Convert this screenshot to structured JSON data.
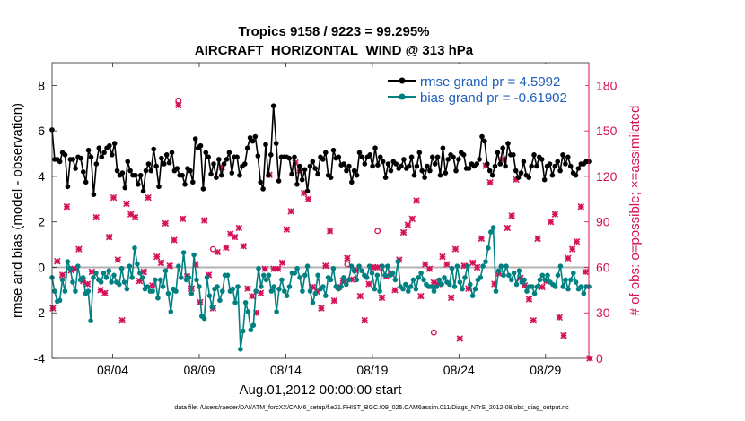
{
  "chart_data": {
    "type": "line",
    "title_line1": "Tropics 9158 / 9223 = 99.295%",
    "title_line2": "AIRCRAFT_HORIZONTAL_WIND @ 313 hPa",
    "ylabel_left": "rmse and bias (model - observation)",
    "ylabel_right": "# of obs: o=possible; ×=assimilated",
    "xlabel": "Aug.01,2012 00:00:00 start",
    "footnote": "data file: /Users/raeder/DAI/ATM_forcXX/CAM6_setup/f.e21.FHIST_BGC.f09_025.CAM6assim.011/Diags_NTrS_2012-08/obs_diag_output.nc",
    "ylim_left": [
      -4,
      9
    ],
    "ylim_right": [
      0,
      195
    ],
    "xlim": [
      0,
      31
    ],
    "yticks_left": [
      -4,
      -2,
      0,
      2,
      4,
      6,
      8
    ],
    "yticks_right": [
      0,
      30,
      60,
      90,
      120,
      150,
      180
    ],
    "xticks": [
      {
        "value": 3.5,
        "label": "08/04"
      },
      {
        "value": 8.5,
        "label": "08/09"
      },
      {
        "value": 13.5,
        "label": "08/14"
      },
      {
        "value": 18.5,
        "label": "08/19"
      },
      {
        "value": 23.5,
        "label": "08/24"
      },
      {
        "value": 28.5,
        "label": "08/29"
      }
    ],
    "zero_line": 0,
    "colors": {
      "rmse": "#000000",
      "bias": "#008080",
      "obs": "#d41159",
      "right_axis": "#d41159",
      "legend_text": "#1f5fbf",
      "zero_line": "#b3b3b3"
    },
    "series": [
      {
        "name": "rmse grand pr = 4.5992",
        "key": "rmse",
        "values": [
          6.05,
          4.75,
          4.75,
          4.65,
          5.05,
          4.95,
          3.55,
          4.75,
          4.75,
          4.35,
          4.85,
          4.8,
          4.2,
          3.75,
          5.15,
          4.85,
          3.2,
          4.55,
          5.25,
          4.85,
          5.05,
          5.25,
          5.35,
          4.95,
          5.45,
          4.25,
          4.05,
          4.15,
          3.5,
          4.65,
          4.25,
          4.05,
          4.05,
          3.65,
          4.05,
          3.35,
          4.25,
          4.55,
          4.25,
          5.2,
          4.45,
          3.55,
          4.8,
          4.55,
          4.95,
          4.6,
          5.05,
          4.25,
          4.35,
          4.05,
          4.05,
          3.65,
          4.35,
          4.25,
          3.75,
          5.65,
          5.25,
          5.35,
          3.45,
          5.05,
          4.85,
          4.1,
          4.55,
          3.95,
          4.75,
          4.05,
          4.55,
          4.75,
          5.05,
          4.15,
          4.85,
          4.85,
          4.05,
          4.45,
          4.55,
          5.25,
          5.7,
          5.55,
          5.75,
          4.9,
          3.75,
          3.45,
          5.4,
          4.05,
          4.95,
          7.1,
          5.45,
          3.8,
          4.85,
          4.85,
          4.85,
          4.8,
          4.1,
          4.85,
          3.65,
          4.45,
          3.85,
          4.3,
          3.35,
          4.45,
          4.65,
          4.35,
          4.1,
          4.85,
          4.75,
          5.05,
          4.05,
          3.95,
          5.15,
          4.8,
          4.85,
          4.5,
          4.55,
          4.25,
          4.45,
          3.75,
          4.25,
          4.05,
          5.05,
          4.85,
          4.55,
          4.85,
          4.95,
          4.45,
          5.25,
          4.5,
          4.85,
          4.65,
          3.95,
          4.55,
          4.25,
          4.65,
          4.55,
          4.35,
          4.45,
          4.75,
          4.35,
          4.45,
          4.85,
          4.05,
          4.45,
          5.05,
          4.25,
          3.95,
          4.45,
          4.25,
          4.85,
          4.55,
          4.85,
          4.05,
          5.25,
          4.15,
          4.75,
          4.95,
          4.85,
          4.25,
          4.75,
          5.05,
          4.95,
          4.35,
          4.35,
          4.55,
          4.45,
          4.55,
          4.75,
          5.75,
          5.55,
          4.55,
          4.25,
          4.05,
          4.45,
          5.05,
          4.55,
          5.25,
          4.45,
          5.45,
          4.95,
          4.95,
          4.25,
          3.95,
          4.15,
          4.65,
          4.05,
          3.95,
          4.45,
          4.95,
          4.45,
          4.85,
          4.75,
          3.85,
          4.45,
          4.55,
          4.05,
          4.45,
          4.65,
          4.25,
          4.95,
          4.55,
          4.85,
          4.45,
          4.15,
          4.05,
          4.35,
          4.55,
          4.55,
          4.65,
          4.65
        ]
      },
      {
        "name": "bias grand pr = -0.61902",
        "key": "bias",
        "values": [
          -0.45,
          -1.05,
          -1.5,
          -1.45,
          -0.55,
          -1.05,
          0.25,
          -0.05,
          -0.65,
          -1.05,
          0.05,
          -0.55,
          -0.45,
          -1.15,
          -1.05,
          -2.35,
          -0.45,
          -0.25,
          -0.55,
          -0.65,
          -0.25,
          -0.45,
          -0.15,
          -0.65,
          -0.35,
          -0.65,
          -0.75,
          -0.05,
          -0.65,
          -0.95,
          0.05,
          -0.45,
          0.85,
          0.15,
          -0.25,
          -0.45,
          -0.95,
          -0.85,
          -1.05,
          -1.05,
          -0.55,
          -1.35,
          -0.55,
          -0.85,
          -0.15,
          -1.15,
          -1.95,
          -0.95,
          -1.05,
          0.05,
          -0.45,
          0.65,
          -0.55,
          -0.45,
          -1.15,
          0.55,
          -0.55,
          -0.85,
          -2.15,
          -2.25,
          -0.45,
          -1.25,
          -1.75,
          -0.95,
          -0.85,
          -1.45,
          -1.05,
          -0.35,
          -0.35,
          -1.05,
          -0.95,
          -1.55,
          -0.85,
          -3.6,
          -2.8,
          -1.55,
          -1.95,
          -2.75,
          -2.55,
          -1.05,
          -0.05,
          -0.85,
          -0.35,
          -0.55,
          -0.35,
          -1.05,
          -0.85,
          -1.95,
          -0.95,
          -0.55,
          -1.05,
          -1.25,
          -0.85,
          -0.25,
          -0.25,
          -0.05,
          -0.45,
          -1.05,
          -0.35,
          0.05,
          -1.05,
          -1.55,
          -1.15,
          -0.35,
          -0.95,
          -0.85,
          -1.25,
          -0.45,
          -0.55,
          -0.05,
          -0.85,
          -0.95,
          -0.85,
          -0.45,
          -0.75,
          -0.55,
          0.05,
          -0.15,
          -0.55,
          0.05,
          -0.15,
          -0.35,
          -0.45,
          0.05,
          -0.25,
          -0.95,
          -0.35,
          -1.05,
          0.05,
          -0.35,
          0.05,
          -0.35,
          -0.25,
          -0.55,
          0.25,
          -0.85,
          -0.95,
          -0.75,
          -1.05,
          -0.85,
          -0.55,
          -0.95,
          -0.45,
          -0.25,
          -0.55,
          -0.75,
          -0.85,
          -0.85,
          -1.05,
          -0.85,
          -0.55,
          -0.75,
          -0.45,
          -0.65,
          -0.75,
          -0.05,
          -0.85,
          0.05,
          -0.65,
          -0.95,
          -0.45,
          0.05,
          -0.75,
          -1.25,
          -0.95,
          -0.55,
          -0.45,
          0.05,
          0.25,
          0.85,
          1.55,
          1.75,
          -1.05,
          -0.15,
          0.05,
          -0.35,
          0.05,
          -0.35,
          -0.55,
          -0.25,
          -0.75,
          -0.15,
          -0.65,
          -0.55,
          -1.05,
          -0.85,
          -0.85,
          -1.15,
          -0.85,
          -0.55,
          -0.35,
          -0.55,
          -0.35,
          -0.65,
          -0.75,
          -0.85,
          -0.35,
          0.05,
          -0.85,
          -0.55,
          -0.95,
          -0.55,
          -0.25,
          -0.65,
          -0.95,
          -0.85,
          -1.15,
          -0.85,
          -0.85
        ]
      }
    ],
    "obs_assimilated": [
      [
        0.05,
        33
      ],
      [
        0.3,
        64
      ],
      [
        0.6,
        55
      ],
      [
        0.85,
        100
      ],
      [
        1.1,
        58
      ],
      [
        1.3,
        59
      ],
      [
        1.55,
        72
      ],
      [
        1.8,
        51
      ],
      [
        2.05,
        49
      ],
      [
        2.3,
        57
      ],
      [
        2.55,
        93
      ],
      [
        2.8,
        45
      ],
      [
        3.05,
        43
      ],
      [
        3.3,
        80
      ],
      [
        3.55,
        106
      ],
      [
        3.8,
        65
      ],
      [
        4.05,
        25
      ],
      [
        4.3,
        102
      ],
      [
        4.55,
        95
      ],
      [
        4.8,
        93
      ],
      [
        5.05,
        51
      ],
      [
        5.3,
        57
      ],
      [
        5.55,
        106
      ],
      [
        5.8,
        48
      ],
      [
        6.05,
        67
      ],
      [
        6.3,
        63
      ],
      [
        6.55,
        89
      ],
      [
        6.8,
        61
      ],
      [
        7.05,
        78
      ],
      [
        7.3,
        167
      ],
      [
        7.55,
        92
      ],
      [
        7.8,
        54
      ],
      [
        8.05,
        46
      ],
      [
        8.3,
        62
      ],
      [
        8.55,
        37
      ],
      [
        8.8,
        91
      ],
      [
        9.05,
        55
      ],
      [
        9.3,
        33
      ],
      [
        9.55,
        70
      ],
      [
        9.8,
        126
      ],
      [
        10.05,
        73
      ],
      [
        10.3,
        82
      ],
      [
        10.55,
        80
      ],
      [
        10.8,
        86
      ],
      [
        11.05,
        74
      ],
      [
        11.3,
        46
      ],
      [
        11.55,
        41
      ],
      [
        11.8,
        30
      ],
      [
        12.05,
        43
      ],
      [
        12.3,
        59
      ],
      [
        12.55,
        121
      ],
      [
        12.8,
        59
      ],
      [
        13.05,
        59
      ],
      [
        13.3,
        63
      ],
      [
        13.55,
        85
      ],
      [
        13.8,
        97
      ],
      [
        14.05,
        129
      ],
      [
        14.3,
        124
      ],
      [
        14.55,
        109
      ],
      [
        14.8,
        105
      ],
      [
        15.05,
        47
      ],
      [
        15.3,
        44
      ],
      [
        15.55,
        33
      ],
      [
        15.8,
        61
      ],
      [
        16.05,
        84
      ],
      [
        16.3,
        38
      ],
      [
        16.55,
        47
      ],
      [
        16.8,
        51
      ],
      [
        17.05,
        66
      ],
      [
        17.3,
        52
      ],
      [
        17.55,
        58
      ],
      [
        17.8,
        41
      ],
      [
        18.05,
        25
      ],
      [
        18.3,
        49
      ],
      [
        18.55,
        60
      ],
      [
        18.8,
        60
      ],
      [
        19.05,
        40
      ],
      [
        19.3,
        54
      ],
      [
        19.55,
        56
      ],
      [
        19.8,
        45
      ],
      [
        20.05,
        65
      ],
      [
        20.3,
        83
      ],
      [
        20.55,
        88
      ],
      [
        20.8,
        92
      ],
      [
        21.05,
        104
      ],
      [
        21.3,
        41
      ],
      [
        21.55,
        62
      ],
      [
        21.8,
        59
      ],
      [
        22.05,
        50
      ],
      [
        22.3,
        49
      ],
      [
        22.55,
        67
      ],
      [
        22.8,
        62
      ],
      [
        23.05,
        40
      ],
      [
        23.3,
        72
      ],
      [
        23.55,
        13
      ],
      [
        23.8,
        61
      ],
      [
        24.05,
        46
      ],
      [
        24.3,
        63
      ],
      [
        24.55,
        60
      ],
      [
        24.8,
        79
      ],
      [
        25.05,
        127
      ],
      [
        25.3,
        116
      ],
      [
        25.55,
        49
      ],
      [
        25.8,
        56
      ],
      [
        26.05,
        131
      ],
      [
        26.3,
        86
      ],
      [
        26.55,
        94
      ],
      [
        26.8,
        118
      ],
      [
        27.05,
        53
      ],
      [
        27.3,
        48
      ],
      [
        27.55,
        39
      ],
      [
        27.8,
        25
      ],
      [
        28.05,
        79
      ],
      [
        28.3,
        47
      ],
      [
        28.55,
        51
      ],
      [
        28.8,
        90
      ],
      [
        29.05,
        95
      ],
      [
        29.3,
        27
      ],
      [
        29.55,
        15
      ],
      [
        29.8,
        66
      ],
      [
        30.05,
        72
      ],
      [
        30.3,
        77
      ],
      [
        30.55,
        100
      ],
      [
        30.8,
        57
      ],
      [
        31.05,
        0
      ]
    ],
    "obs_possible": [
      [
        7.3,
        170
      ],
      [
        9.3,
        72
      ],
      [
        18.8,
        84
      ],
      [
        17.05,
        62
      ],
      [
        22.05,
        17
      ]
    ]
  }
}
